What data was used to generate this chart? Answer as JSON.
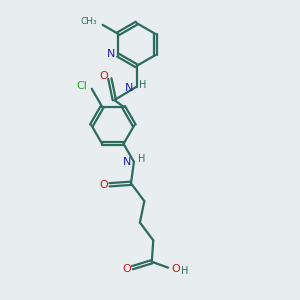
{
  "bg_color": "#e8edf0",
  "bond_color": "#2d6b5e",
  "nitrogen_color": "#1a1acc",
  "oxygen_color": "#cc1a1a",
  "chlorine_color": "#22aa22",
  "line_width": 1.6,
  "figsize": [
    3.0,
    3.0
  ],
  "dpi": 100,
  "xlim": [
    0,
    10
  ],
  "ylim": [
    0,
    10
  ]
}
